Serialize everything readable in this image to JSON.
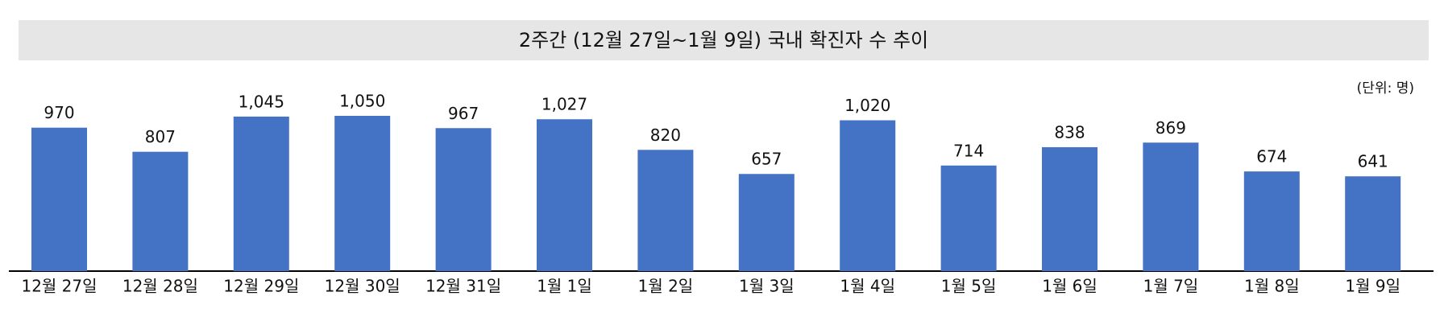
{
  "chart_data": {
    "type": "bar",
    "title": "2주간 (12월 27일~1월 9일) 국내 확진자 수 추이",
    "unit_label": "(단위: 명)",
    "categories": [
      "12월 27일",
      "12월 28일",
      "12월 29일",
      "12월 30일",
      "12월 31일",
      "1월 1일",
      "1월 2일",
      "1월 3일",
      "1월 4일",
      "1월 5일",
      "1월 6일",
      "1월 7일",
      "1월 8일",
      "1월 9일"
    ],
    "values": [
      970,
      807,
      1045,
      1050,
      967,
      1027,
      820,
      657,
      1020,
      714,
      838,
      869,
      674,
      641
    ],
    "value_labels": [
      "970",
      "807",
      "1,045",
      "1,050",
      "967",
      "1,027",
      "820",
      "657",
      "1,020",
      "714",
      "838",
      "869",
      "674",
      "641"
    ],
    "color": "#4472c4"
  }
}
